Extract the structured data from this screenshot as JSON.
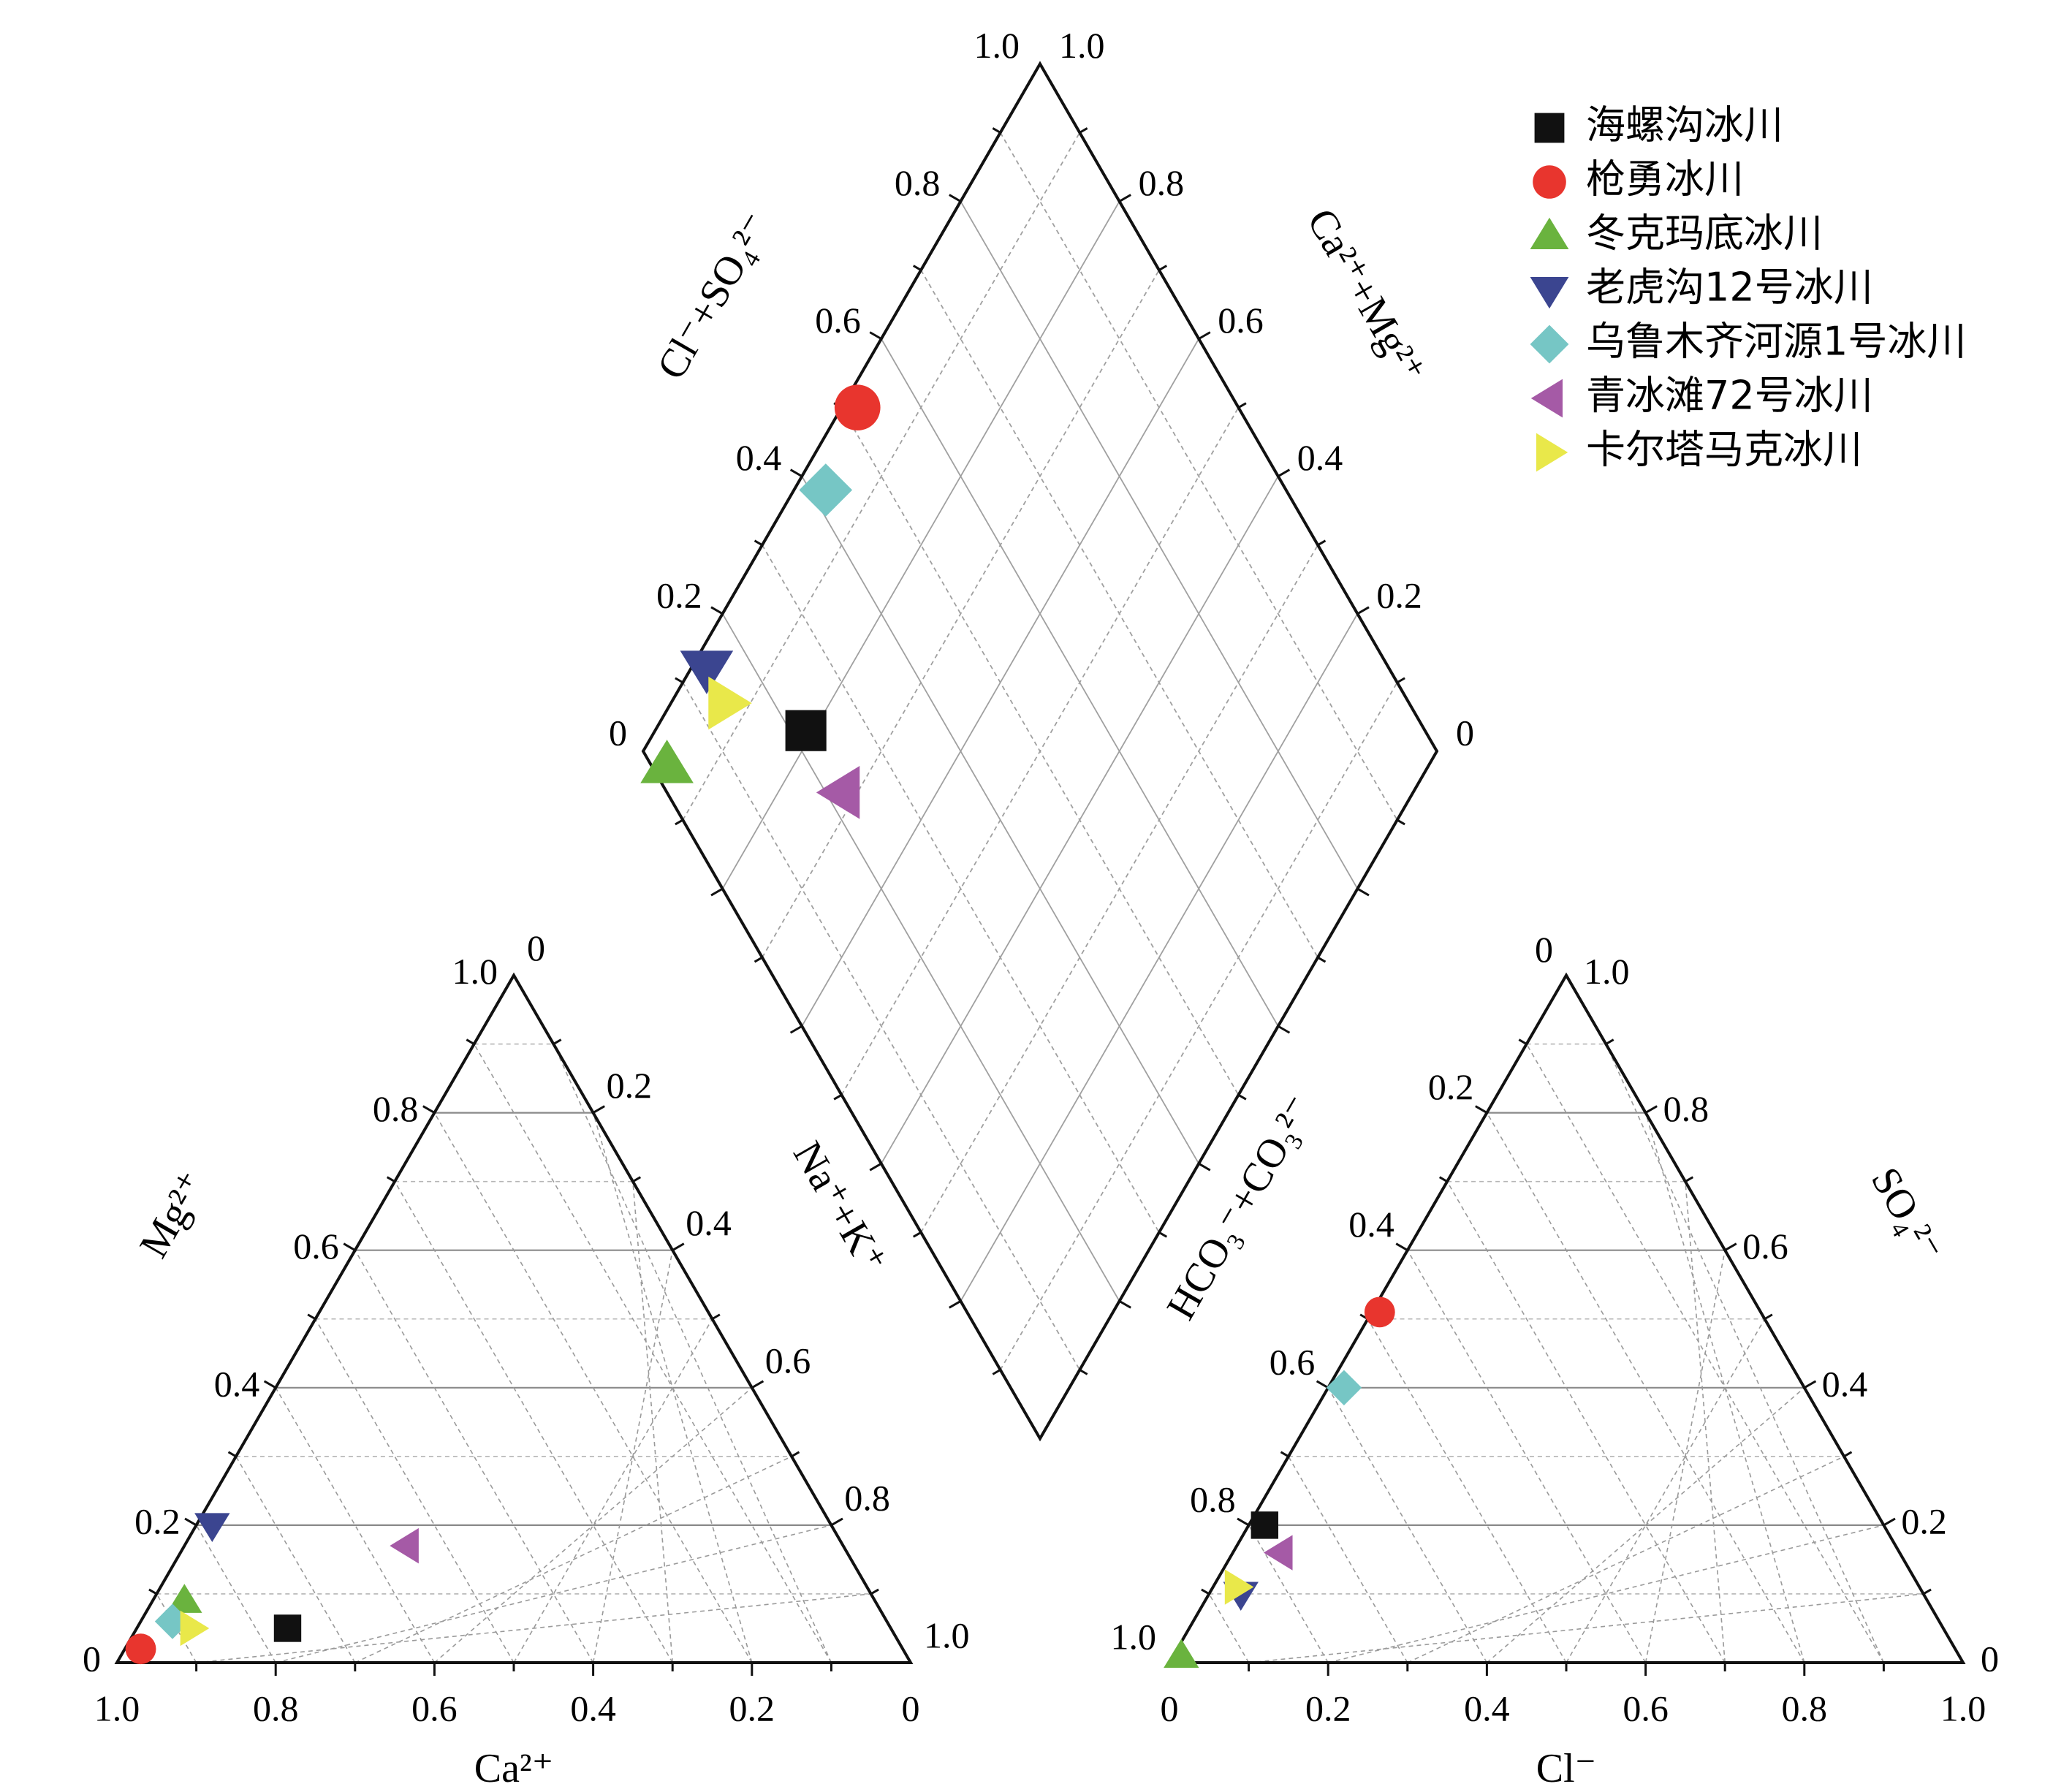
{
  "chart_data": {
    "type": "scatter",
    "subtype": "piper",
    "series": [
      {
        "name": "海螺沟冰川",
        "color": "#111111",
        "marker": "square",
        "cation": {
          "Ca": 0.76,
          "Mg": 0.05,
          "NaK": 0.19
        },
        "anion": {
          "Cl": 0.02,
          "SO4": 0.2,
          "HCO3": 0.78
        },
        "diamond": {
          "ClSO4": 0.22,
          "CaMg": 0.81
        }
      },
      {
        "name": "枪勇冰川",
        "color": "#e8352e",
        "marker": "circle",
        "cation": {
          "Ca": 0.96,
          "Mg": 0.02,
          "NaK": 0.02
        },
        "anion": {
          "Cl": 0.01,
          "SO4": 0.51,
          "HCO3": 0.48
        },
        "diamond": {
          "ClSO4": 0.52,
          "CaMg": 0.98
        }
      },
      {
        "name": "冬克玛底冰川",
        "color": "#6ab33e",
        "marker": "triangle-up",
        "cation": {
          "Ca": 0.87,
          "Mg": 0.09,
          "NaK": 0.04
        },
        "anion": {
          "Cl": 0.01,
          "SO4": 0.01,
          "HCO3": 0.98
        },
        "diamond": {
          "ClSO4": 0.02,
          "CaMg": 0.96
        }
      },
      {
        "name": "老虎沟12号冰川",
        "color": "#3b4590",
        "marker": "triangle-down",
        "cation": {
          "Ca": 0.78,
          "Mg": 0.2,
          "NaK": 0.02
        },
        "anion": {
          "Cl": 0.04,
          "SO4": 0.1,
          "HCO3": 0.86
        },
        "diamond": {
          "ClSO4": 0.14,
          "CaMg": 0.98
        }
      },
      {
        "name": "乌鲁木齐河源1号冰川",
        "color": "#76c6c5",
        "marker": "diamond",
        "cation": {
          "Ca": 0.9,
          "Mg": 0.06,
          "NaK": 0.04
        },
        "anion": {
          "Cl": 0.02,
          "SO4": 0.4,
          "HCO3": 0.58
        },
        "diamond": {
          "ClSO4": 0.42,
          "CaMg": 0.96
        }
      },
      {
        "name": "青冰滩72号冰川",
        "color": "#a55aa6",
        "marker": "triangle-left",
        "cation": {
          "Ca": 0.55,
          "Mg": 0.17,
          "NaK": 0.28
        },
        "anion": {
          "Cl": 0.06,
          "SO4": 0.16,
          "HCO3": 0.78
        },
        "diamond": {
          "ClSO4": 0.22,
          "CaMg": 0.72
        }
      },
      {
        "name": "卡尔塔马克冰川",
        "color": "#e9e84a",
        "marker": "triangle-right",
        "cation": {
          "Ca": 0.88,
          "Mg": 0.05,
          "NaK": 0.07
        },
        "anion": {
          "Cl": 0.03,
          "SO4": 0.11,
          "HCO3": 0.86
        },
        "diamond": {
          "ClSO4": 0.14,
          "CaMg": 0.93
        }
      }
    ],
    "cation_triangle": {
      "bottom_label": "Ca²⁺",
      "bottom_ticks": [
        "1.0",
        "0.8",
        "0.6",
        "0.4",
        "0.2",
        "0"
      ],
      "left_label": "Mg²⁺",
      "left_ticks": [
        "0",
        "0.2",
        "0.4",
        "0.6",
        "0.8",
        "1.0"
      ],
      "right_label": "Na⁺+K⁺",
      "right_ticks": [
        "0",
        "0.2",
        "0.4",
        "0.6",
        "0.8",
        "1.0"
      ]
    },
    "anion_triangle": {
      "bottom_label": "Cl⁻",
      "bottom_ticks": [
        "0",
        "0.2",
        "0.4",
        "0.6",
        "0.8",
        "1.0"
      ],
      "left_label": "HCO₃⁻+CO₃²⁻",
      "left_ticks": [
        "1.0",
        "0.8",
        "0.6",
        "0.4",
        "0.2",
        "0"
      ],
      "right_label": "SO₄²⁻",
      "right_ticks": [
        "0",
        "0.2",
        "0.4",
        "0.6",
        "0.8",
        "1.0"
      ]
    },
    "diamond_panel": {
      "left_label": "Cl⁻+SO₄²⁻",
      "left_ticks": [
        "0",
        "0.2",
        "0.4",
        "0.6",
        "0.8",
        "1.0"
      ],
      "right_label": "Ca²⁺+Mg²⁺",
      "right_ticks": [
        "0",
        "0.2",
        "0.4",
        "0.6",
        "0.8",
        "1.0"
      ]
    },
    "legend_placement": "top-right",
    "grid": true
  }
}
